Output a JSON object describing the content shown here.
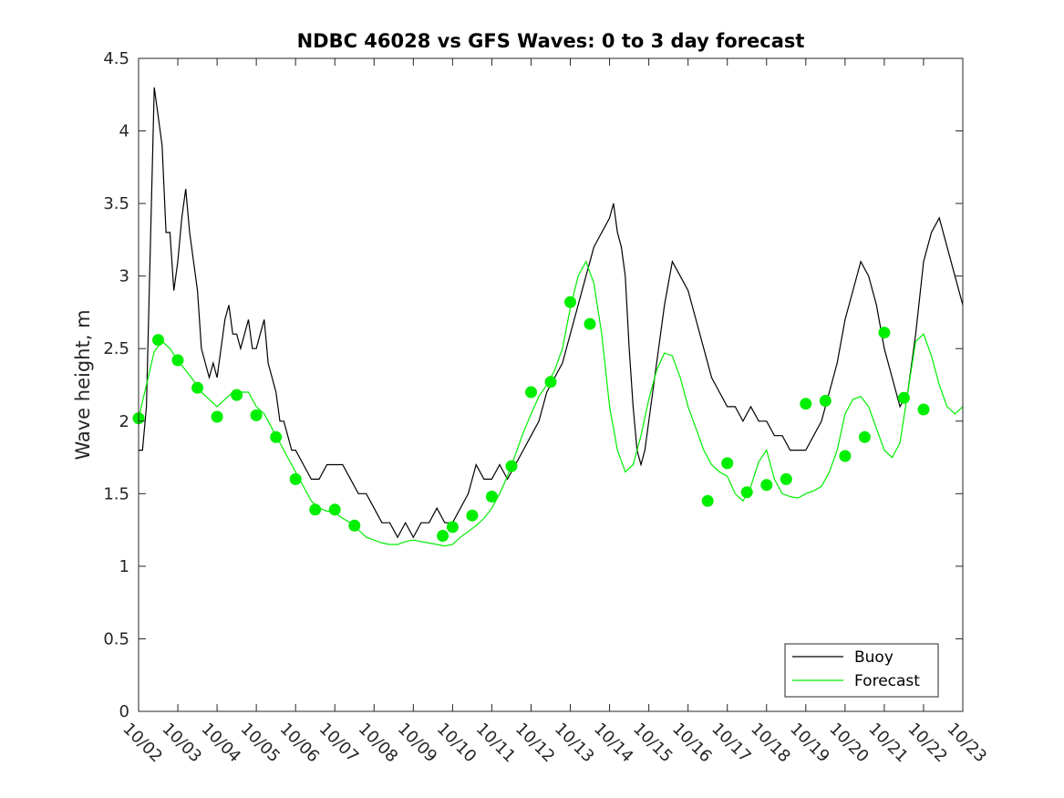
{
  "chart_data": {
    "type": "line",
    "title": "NDBC 46028 vs GFS Waves: 0 to 3 day forecast",
    "xlabel": "",
    "ylabel": "Wave height, m",
    "x_ticks": [
      "10/02",
      "10/03",
      "10/04",
      "10/05",
      "10/06",
      "10/07",
      "10/08",
      "10/09",
      "10/10",
      "10/11",
      "10/12",
      "10/13",
      "10/14",
      "10/15",
      "10/16",
      "10/17",
      "10/18",
      "10/19",
      "10/20",
      "10/21",
      "10/22",
      "10/23"
    ],
    "xlim": [
      0,
      21
    ],
    "ylim": [
      0,
      4.5
    ],
    "y_ticks": [
      0,
      0.5,
      1,
      1.5,
      2,
      2.5,
      3,
      3.5,
      4,
      4.5
    ],
    "y_tick_labels": [
      "0",
      "0.5",
      "1",
      "1.5",
      "2",
      "2.5",
      "3",
      "3.5",
      "4",
      "4.5"
    ],
    "grid": false,
    "legend": {
      "position": "bottom-right",
      "entries": [
        {
          "label": "Buoy",
          "color": "#000000"
        },
        {
          "label": "Forecast",
          "color": "#00ee00"
        }
      ]
    },
    "colors": {
      "buoy": "#000000",
      "forecast": "#00ee00",
      "markers": "#00ee00"
    },
    "series": [
      {
        "name": "Buoy",
        "x_unit": "days since 10/02",
        "points": [
          [
            0,
            1.8
          ],
          [
            0.1,
            1.8
          ],
          [
            0.2,
            2.1
          ],
          [
            0.3,
            3.2
          ],
          [
            0.4,
            4.3
          ],
          [
            0.5,
            4.1
          ],
          [
            0.6,
            3.9
          ],
          [
            0.7,
            3.3
          ],
          [
            0.8,
            3.3
          ],
          [
            0.9,
            2.9
          ],
          [
            1.0,
            3.1
          ],
          [
            1.1,
            3.4
          ],
          [
            1.2,
            3.6
          ],
          [
            1.3,
            3.3
          ],
          [
            1.4,
            3.1
          ],
          [
            1.5,
            2.9
          ],
          [
            1.6,
            2.5
          ],
          [
            1.7,
            2.4
          ],
          [
            1.8,
            2.3
          ],
          [
            1.9,
            2.4
          ],
          [
            2.0,
            2.3
          ],
          [
            2.1,
            2.5
          ],
          [
            2.2,
            2.7
          ],
          [
            2.3,
            2.8
          ],
          [
            2.4,
            2.6
          ],
          [
            2.5,
            2.6
          ],
          [
            2.6,
            2.5
          ],
          [
            2.7,
            2.6
          ],
          [
            2.8,
            2.7
          ],
          [
            2.9,
            2.5
          ],
          [
            3.0,
            2.5
          ],
          [
            3.1,
            2.6
          ],
          [
            3.2,
            2.7
          ],
          [
            3.3,
            2.4
          ],
          [
            3.4,
            2.3
          ],
          [
            3.5,
            2.2
          ],
          [
            3.6,
            2.0
          ],
          [
            3.7,
            2.0
          ],
          [
            3.8,
            1.9
          ],
          [
            3.9,
            1.8
          ],
          [
            4.0,
            1.8
          ],
          [
            4.2,
            1.7
          ],
          [
            4.4,
            1.6
          ],
          [
            4.6,
            1.6
          ],
          [
            4.8,
            1.7
          ],
          [
            5.0,
            1.7
          ],
          [
            5.2,
            1.7
          ],
          [
            5.4,
            1.6
          ],
          [
            5.6,
            1.5
          ],
          [
            5.8,
            1.5
          ],
          [
            6.0,
            1.4
          ],
          [
            6.2,
            1.3
          ],
          [
            6.4,
            1.3
          ],
          [
            6.6,
            1.2
          ],
          [
            6.8,
            1.3
          ],
          [
            7.0,
            1.2
          ],
          [
            7.2,
            1.3
          ],
          [
            7.4,
            1.3
          ],
          [
            7.6,
            1.4
          ],
          [
            7.8,
            1.3
          ],
          [
            8.0,
            1.3
          ],
          [
            8.2,
            1.4
          ],
          [
            8.4,
            1.5
          ],
          [
            8.6,
            1.7
          ],
          [
            8.8,
            1.6
          ],
          [
            9.0,
            1.6
          ],
          [
            9.2,
            1.7
          ],
          [
            9.4,
            1.6
          ],
          [
            9.6,
            1.7
          ],
          [
            9.8,
            1.8
          ],
          [
            10.0,
            1.9
          ],
          [
            10.2,
            2.0
          ],
          [
            10.4,
            2.2
          ],
          [
            10.6,
            2.3
          ],
          [
            10.8,
            2.4
          ],
          [
            11.0,
            2.6
          ],
          [
            11.2,
            2.8
          ],
          [
            11.4,
            3.0
          ],
          [
            11.6,
            3.2
          ],
          [
            11.8,
            3.3
          ],
          [
            12.0,
            3.4
          ],
          [
            12.1,
            3.5
          ],
          [
            12.2,
            3.3
          ],
          [
            12.3,
            3.2
          ],
          [
            12.4,
            3.0
          ],
          [
            12.5,
            2.5
          ],
          [
            12.6,
            2.1
          ],
          [
            12.7,
            1.8
          ],
          [
            12.8,
            1.7
          ],
          [
            12.9,
            1.8
          ],
          [
            13.0,
            2.0
          ],
          [
            13.2,
            2.4
          ],
          [
            13.4,
            2.8
          ],
          [
            13.6,
            3.1
          ],
          [
            13.8,
            3.0
          ],
          [
            14.0,
            2.9
          ],
          [
            14.2,
            2.7
          ],
          [
            14.4,
            2.5
          ],
          [
            14.6,
            2.3
          ],
          [
            14.8,
            2.2
          ],
          [
            15.0,
            2.1
          ],
          [
            15.2,
            2.1
          ],
          [
            15.4,
            2.0
          ],
          [
            15.6,
            2.1
          ],
          [
            15.8,
            2.0
          ],
          [
            16.0,
            2.0
          ],
          [
            16.2,
            1.9
          ],
          [
            16.4,
            1.9
          ],
          [
            16.6,
            1.8
          ],
          [
            16.8,
            1.8
          ],
          [
            17.0,
            1.8
          ],
          [
            17.2,
            1.9
          ],
          [
            17.4,
            2.0
          ],
          [
            17.6,
            2.2
          ],
          [
            17.8,
            2.4
          ],
          [
            18.0,
            2.7
          ],
          [
            18.2,
            2.9
          ],
          [
            18.4,
            3.1
          ],
          [
            18.6,
            3.0
          ],
          [
            18.8,
            2.8
          ],
          [
            19.0,
            2.5
          ],
          [
            19.2,
            2.3
          ],
          [
            19.4,
            2.1
          ],
          [
            19.6,
            2.2
          ],
          [
            19.8,
            2.6
          ],
          [
            20.0,
            3.1
          ],
          [
            20.2,
            3.3
          ],
          [
            20.4,
            3.4
          ],
          [
            20.6,
            3.2
          ],
          [
            20.8,
            3.0
          ],
          [
            21.0,
            2.8
          ]
        ]
      },
      {
        "name": "Forecast",
        "x_unit": "days since 10/02",
        "points": [
          [
            0,
            2.02
          ],
          [
            0.2,
            2.25
          ],
          [
            0.4,
            2.48
          ],
          [
            0.6,
            2.55
          ],
          [
            0.8,
            2.5
          ],
          [
            1.0,
            2.42
          ],
          [
            1.2,
            2.35
          ],
          [
            1.4,
            2.28
          ],
          [
            1.6,
            2.2
          ],
          [
            1.8,
            2.15
          ],
          [
            2.0,
            2.1
          ],
          [
            2.2,
            2.15
          ],
          [
            2.4,
            2.2
          ],
          [
            2.6,
            2.2
          ],
          [
            2.8,
            2.2
          ],
          [
            3.0,
            2.1
          ],
          [
            3.2,
            2.05
          ],
          [
            3.4,
            1.95
          ],
          [
            3.6,
            1.85
          ],
          [
            3.8,
            1.75
          ],
          [
            4.0,
            1.65
          ],
          [
            4.2,
            1.55
          ],
          [
            4.4,
            1.45
          ],
          [
            4.6,
            1.4
          ],
          [
            4.8,
            1.38
          ],
          [
            5.0,
            1.37
          ],
          [
            5.2,
            1.33
          ],
          [
            5.4,
            1.3
          ],
          [
            5.6,
            1.25
          ],
          [
            5.8,
            1.2
          ],
          [
            6.0,
            1.18
          ],
          [
            6.2,
            1.16
          ],
          [
            6.4,
            1.15
          ],
          [
            6.6,
            1.15
          ],
          [
            6.8,
            1.17
          ],
          [
            7.0,
            1.18
          ],
          [
            7.2,
            1.17
          ],
          [
            7.4,
            1.16
          ],
          [
            7.6,
            1.15
          ],
          [
            7.8,
            1.14
          ],
          [
            8.0,
            1.15
          ],
          [
            8.2,
            1.2
          ],
          [
            8.4,
            1.24
          ],
          [
            8.6,
            1.28
          ],
          [
            8.8,
            1.33
          ],
          [
            9.0,
            1.4
          ],
          [
            9.2,
            1.5
          ],
          [
            9.4,
            1.62
          ],
          [
            9.6,
            1.77
          ],
          [
            9.8,
            1.92
          ],
          [
            10.0,
            2.05
          ],
          [
            10.2,
            2.17
          ],
          [
            10.4,
            2.25
          ],
          [
            10.6,
            2.35
          ],
          [
            10.8,
            2.5
          ],
          [
            11.0,
            2.78
          ],
          [
            11.2,
            3.0
          ],
          [
            11.4,
            3.1
          ],
          [
            11.6,
            2.95
          ],
          [
            11.8,
            2.6
          ],
          [
            12.0,
            2.1
          ],
          [
            12.2,
            1.8
          ],
          [
            12.4,
            1.65
          ],
          [
            12.6,
            1.7
          ],
          [
            12.8,
            1.9
          ],
          [
            13.0,
            2.15
          ],
          [
            13.2,
            2.35
          ],
          [
            13.4,
            2.47
          ],
          [
            13.6,
            2.45
          ],
          [
            13.8,
            2.3
          ],
          [
            14.0,
            2.1
          ],
          [
            14.2,
            1.95
          ],
          [
            14.4,
            1.8
          ],
          [
            14.6,
            1.7
          ],
          [
            14.8,
            1.65
          ],
          [
            15.0,
            1.62
          ]
        ]
      },
      {
        "name": "Forecast",
        "x_unit": "days since 10/02",
        "points": [
          [
            15.0,
            1.62
          ],
          [
            15.2,
            1.5
          ],
          [
            15.4,
            1.45
          ],
          [
            15.6,
            1.55
          ],
          [
            15.8,
            1.72
          ],
          [
            16.0,
            1.8
          ],
          [
            16.2,
            1.6
          ],
          [
            16.4,
            1.5
          ],
          [
            16.6,
            1.48
          ],
          [
            16.8,
            1.47
          ],
          [
            17.0,
            1.5
          ],
          [
            17.2,
            1.52
          ],
          [
            17.4,
            1.55
          ],
          [
            17.6,
            1.65
          ],
          [
            17.8,
            1.8
          ],
          [
            18.0,
            2.05
          ],
          [
            18.2,
            2.15
          ],
          [
            18.4,
            2.17
          ],
          [
            18.6,
            2.1
          ],
          [
            18.8,
            1.95
          ],
          [
            19.0,
            1.8
          ],
          [
            19.2,
            1.75
          ],
          [
            19.4,
            1.85
          ],
          [
            19.6,
            2.2
          ],
          [
            19.8,
            2.55
          ],
          [
            20.0,
            2.6
          ],
          [
            20.2,
            2.45
          ],
          [
            20.4,
            2.25
          ],
          [
            20.6,
            2.1
          ],
          [
            20.8,
            2.05
          ],
          [
            21.0,
            2.1
          ],
          [
            21.2,
            2.3
          ],
          [
            21.4,
            2.55
          ],
          [
            21.6,
            2.7
          ],
          [
            21.8,
            2.65
          ],
          [
            22.0,
            2.55
          ]
        ]
      }
    ],
    "markers": [
      [
        0,
        2.02
      ],
      [
        0.5,
        2.56
      ],
      [
        1.0,
        2.42
      ],
      [
        1.5,
        2.23
      ],
      [
        2.0,
        2.03
      ],
      [
        2.5,
        2.18
      ],
      [
        3.0,
        2.04
      ],
      [
        3.5,
        1.89
      ],
      [
        4.0,
        1.6
      ],
      [
        4.5,
        1.39
      ],
      [
        5.0,
        1.39
      ],
      [
        5.5,
        1.28
      ],
      [
        7.75,
        1.21
      ],
      [
        8.0,
        1.27
      ],
      [
        8.5,
        1.35
      ],
      [
        9.0,
        1.48
      ],
      [
        9.5,
        1.69
      ],
      [
        10.0,
        2.2
      ],
      [
        10.5,
        2.27
      ],
      [
        11.0,
        2.82
      ],
      [
        11.5,
        2.67
      ],
      [
        14.5,
        1.45
      ],
      [
        15.0,
        1.71
      ],
      [
        15.5,
        1.51
      ],
      [
        16.0,
        1.56
      ],
      [
        16.5,
        1.6
      ],
      [
        17.0,
        2.12
      ],
      [
        17.5,
        2.14
      ],
      [
        18.0,
        1.76
      ],
      [
        18.5,
        1.89
      ],
      [
        19.0,
        2.61
      ],
      [
        19.5,
        2.16
      ],
      [
        20.0,
        2.08
      ]
    ]
  }
}
